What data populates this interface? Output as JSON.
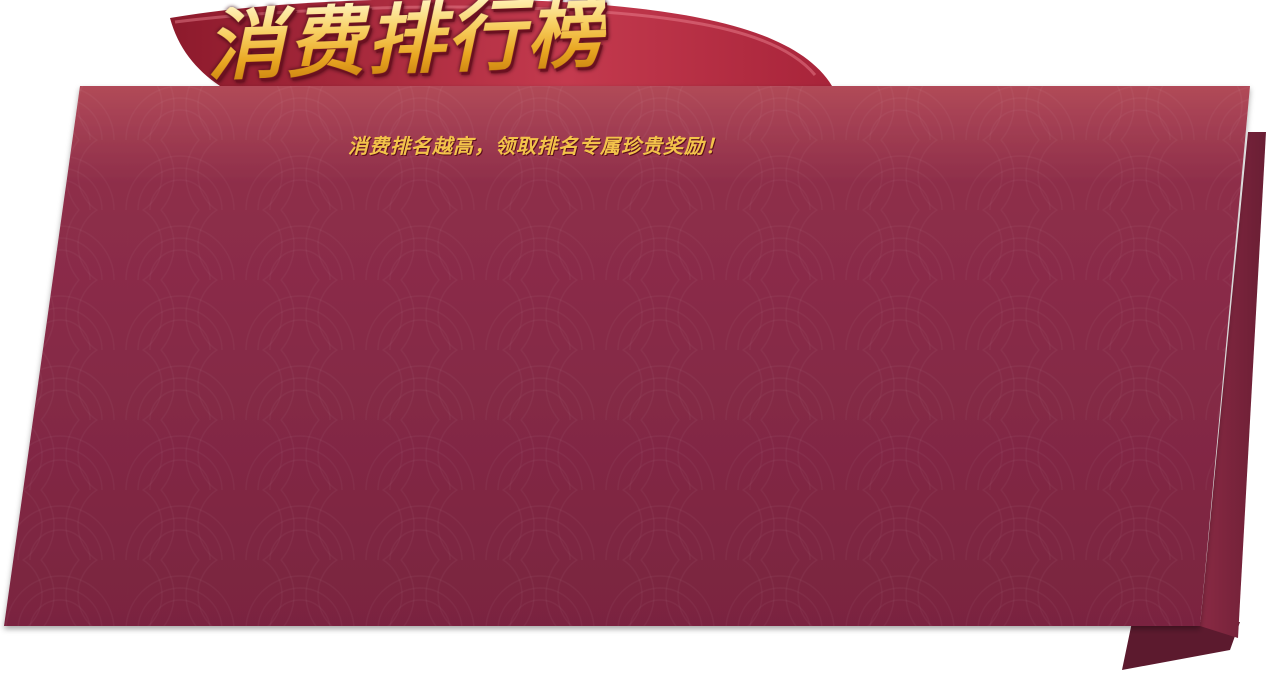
{
  "banner": {
    "title": "消费排行榜",
    "subtitle": "消费排名越高，领取排名专属珍贵奖励！"
  },
  "colors": {
    "panel_top": "#b14a58",
    "panel_mid": "#8a2c48",
    "panel_bottom": "#7a2440",
    "ribbon": "#a8243a",
    "fold": "#5c1a2e",
    "title_gold": "#f7c23f",
    "subtitle_gold": "#f3c34a"
  }
}
